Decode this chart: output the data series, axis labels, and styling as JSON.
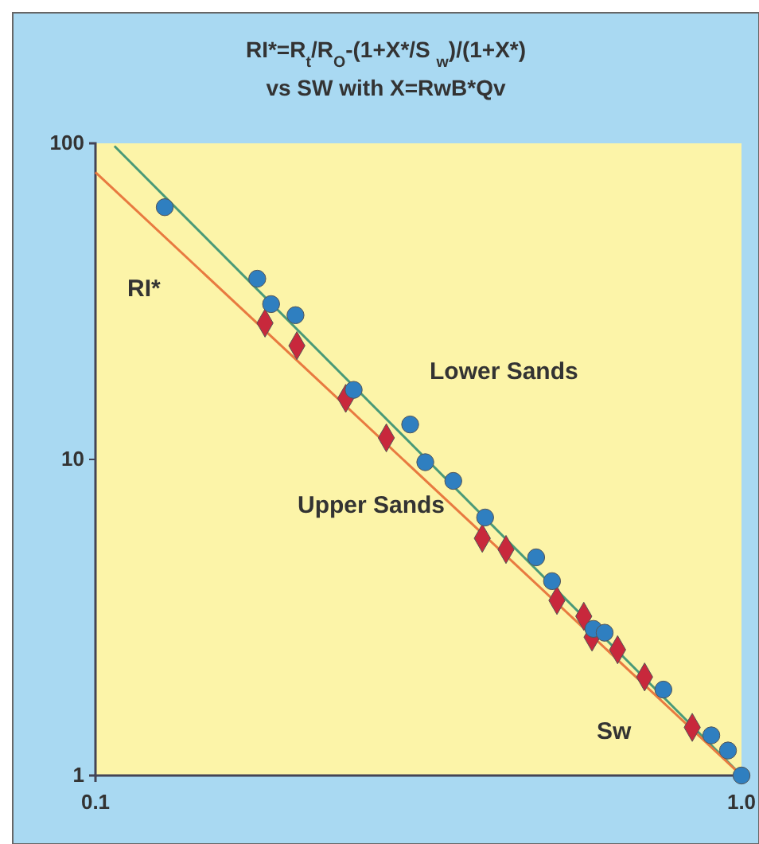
{
  "chart_data": {
    "type": "scatter",
    "title": "RI*=R$_{t}$/R$_{O}$-(1+X*/S $_{w}$)/(1+X*)",
    "subtitle": "vs SW with X=RwB*Qv",
    "xlabel": "Sw",
    "ylabel": "RI*",
    "log": "xy",
    "xlim": [
      0.1,
      1
    ],
    "ylim": [
      1,
      100
    ],
    "xticks": [
      0.1,
      {
        "value": 1,
        "label": "1.0"
      }
    ],
    "yticks": [
      1,
      10,
      100
    ],
    "annotations": [
      "Lower Sands",
      "Upper Sands"
    ],
    "series": [
      {
        "color": "#2f7fc0",
        "marker": "circle",
        "x": [
          0.128,
          0.178,
          0.187,
          0.204,
          0.251,
          0.307,
          0.324,
          0.358,
          0.401,
          0.481,
          0.509,
          0.59,
          0.614,
          0.757,
          0.898,
          0.953,
          1
        ],
        "values": [
          62.8,
          37.3,
          31.0,
          28.6,
          16.6,
          12.9,
          9.8,
          8.55,
          6.55,
          4.9,
          4.12,
          2.91,
          2.83,
          1.87,
          1.34,
          1.2,
          1.0
        ]
      },
      {
        "color": "#c8283c",
        "marker": "diamond",
        "x": [
          0.183,
          0.205,
          0.244,
          0.282,
          0.397,
          0.432,
          0.518,
          0.57,
          0.587,
          0.643,
          0.708,
          0.839
        ],
        "values": [
          27.0,
          22.9,
          15.6,
          11.7,
          5.63,
          5.19,
          3.58,
          3.19,
          2.74,
          2.5,
          2.05,
          1.42
        ]
      },
      {
        "type": "line",
        "color": "#4a9a78",
        "x": [
          0.107,
          1
        ],
        "values": [
          98,
          1
        ]
      },
      {
        "type": "line",
        "color": "#e87a40",
        "x": [
          0.1,
          1
        ],
        "values": [
          81,
          1
        ]
      }
    ]
  }
}
